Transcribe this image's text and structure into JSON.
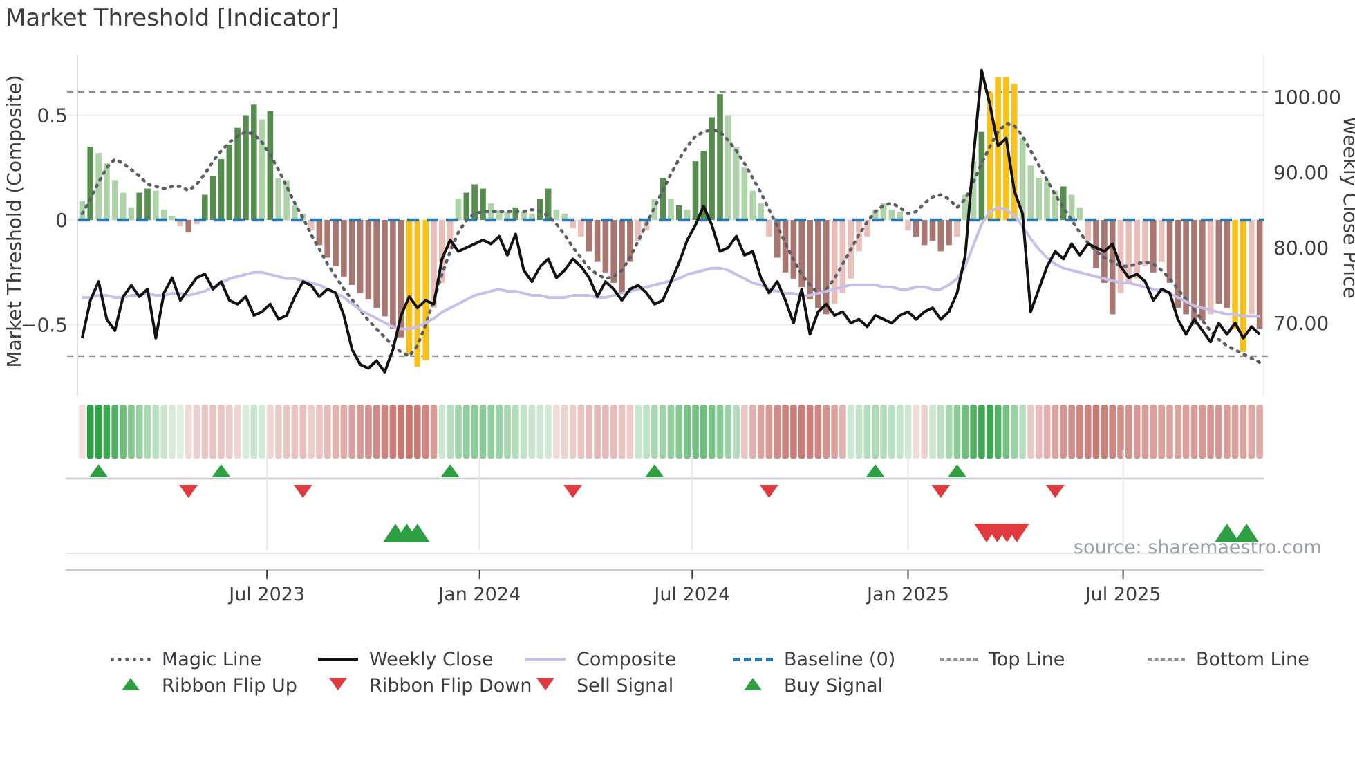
{
  "title": "Market Threshold [Indicator]",
  "source_text": "source: sharemaestro.com",
  "legend": {
    "magic": "Magic Line",
    "weekly": "Weekly Close",
    "composite": "Composite",
    "baseline": "Baseline (0)",
    "top": "Top Line",
    "bottom": "Bottom Line",
    "flip_up": "Ribbon Flip Up",
    "flip_down": "Ribbon Flip Down",
    "sell": "Sell Signal",
    "buy": "Buy Signal"
  },
  "chart_data": {
    "type": "bar",
    "title": "Market Threshold [Indicator]",
    "left_axis": {
      "label": "Market Threshold (Composite)",
      "ticks": [
        {
          "label": "0.5",
          "value": 0.5
        },
        {
          "label": "0",
          "value": 0
        },
        {
          "label": "−0.5",
          "value": -0.5
        }
      ]
    },
    "right_axis": {
      "label": "Weekly Close Price",
      "ticks": [
        {
          "label": "100.00",
          "value": 100
        },
        {
          "label": "90.00",
          "value": 90
        },
        {
          "label": "80.00",
          "value": 80
        },
        {
          "label": "70.00",
          "value": 70
        }
      ]
    },
    "x_ticks": [
      {
        "label": "Jul 2023",
        "week": 22.6
      },
      {
        "label": "Jan 2024",
        "week": 48.6
      },
      {
        "label": "Jul 2024",
        "week": 74.6
      },
      {
        "label": "Jan 2025",
        "week": 101.0
      },
      {
        "label": "Jul 2025",
        "week": 127.3
      }
    ],
    "top_line": 0.61,
    "bottom_line": -0.65,
    "baseline": 0,
    "colors": {
      "bar_light_green": "#aed3a8",
      "bar_dark_green": "#568c4e",
      "bar_light_red": "#eabfba",
      "bar_dark_red": "#a97670",
      "bar_extreme": "#f7c11a",
      "weekly_close": "#111111",
      "composite": "#c8bfe8",
      "magic_line": "#5b6066",
      "baseline": "#2878b0",
      "guide_lines": "#8b9097",
      "ribbon_green": "#2ca042",
      "ribbon_red": "#b2372d",
      "marker_green": "#2ea043",
      "marker_red": "#e0393e",
      "grid": "#e7ebf2",
      "spine": "#d0d5db"
    },
    "bars": {
      "values": [
        0.09,
        0.35,
        0.32,
        0.27,
        0.19,
        0.13,
        0.06,
        0.13,
        0.15,
        0.14,
        0.05,
        0.02,
        -0.03,
        -0.06,
        -0.02,
        0.12,
        0.21,
        0.29,
        0.36,
        0.44,
        0.5,
        0.55,
        0.48,
        0.52,
        0.2,
        0.19,
        0.07,
        0.03,
        -0.05,
        -0.12,
        -0.18,
        -0.22,
        -0.27,
        -0.31,
        -0.35,
        -0.38,
        -0.42,
        -0.46,
        -0.52,
        -0.56,
        -0.64,
        -0.7,
        -0.67,
        -0.42,
        -0.3,
        -0.14,
        0.1,
        0.13,
        0.17,
        0.15,
        0.08,
        0.05,
        0.04,
        0.06,
        0.04,
        0.03,
        0.1,
        0.15,
        0.05,
        0.03,
        -0.04,
        -0.08,
        -0.15,
        -0.2,
        -0.25,
        -0.3,
        -0.35,
        -0.2,
        -0.1,
        -0.05,
        0.1,
        0.2,
        0.1,
        0.07,
        0.05,
        0.28,
        0.33,
        0.49,
        0.6,
        0.5,
        0.35,
        0.25,
        0.14,
        0.08,
        -0.08,
        -0.18,
        -0.25,
        -0.28,
        -0.32,
        -0.38,
        -0.42,
        -0.45,
        -0.4,
        -0.35,
        -0.28,
        -0.15,
        -0.08,
        0.05,
        0.08,
        0.05,
        0.04,
        -0.05,
        -0.08,
        -0.12,
        -0.1,
        -0.15,
        -0.12,
        -0.08,
        0.12,
        0.28,
        0.42,
        0.61,
        0.68,
        0.68,
        0.65,
        0.39,
        0.26,
        0.2,
        0.19,
        0.14,
        0.16,
        0.12,
        0.06,
        -0.1,
        -0.23,
        -0.3,
        -0.45,
        -0.35,
        -0.3,
        -0.28,
        -0.22,
        -0.25,
        -0.2,
        -0.3,
        -0.42,
        -0.45,
        -0.5,
        -0.48,
        -0.45,
        -0.4,
        -0.42,
        -0.52,
        -0.63,
        -0.45,
        -0.52
      ],
      "colors": [
        "lg",
        "dg",
        "lg",
        "lg",
        "lg",
        "lg",
        "lg",
        "dg",
        "dg",
        "lg",
        "lg",
        "lg",
        "lr",
        "dr",
        "lr",
        "dg",
        "dg",
        "dg",
        "dg",
        "dg",
        "dg",
        "dg",
        "lg",
        "dg",
        "lg",
        "lg",
        "lg",
        "lg",
        "lr",
        "dr",
        "dr",
        "dr",
        "dr",
        "dr",
        "dr",
        "dr",
        "dr",
        "dr",
        "dr",
        "dr",
        "y",
        "y",
        "y",
        "lr",
        "lr",
        "lr",
        "lg",
        "dg",
        "dg",
        "dg",
        "lg",
        "lg",
        "lg",
        "dg",
        "lg",
        "lg",
        "dg",
        "dg",
        "lg",
        "lg",
        "lr",
        "lr",
        "dr",
        "dr",
        "dr",
        "dr",
        "dr",
        "dr",
        "lr",
        "lr",
        "lg",
        "dg",
        "lg",
        "dg",
        "lg",
        "dg",
        "dg",
        "dg",
        "dg",
        "lg",
        "lg",
        "lg",
        "lg",
        "lg",
        "lr",
        "dr",
        "dr",
        "dr",
        "dr",
        "dr",
        "dr",
        "dr",
        "lr",
        "lr",
        "lr",
        "lr",
        "lr",
        "lg",
        "lg",
        "lg",
        "lg",
        "lr",
        "dr",
        "dr",
        "dr",
        "dr",
        "dr",
        "lr",
        "lg",
        "lg",
        "dg",
        "y",
        "y",
        "y",
        "y",
        "lg",
        "lg",
        "lg",
        "lg",
        "lg",
        "dg",
        "lg",
        "lg",
        "lr",
        "dr",
        "dr",
        "dr",
        "lr",
        "lr",
        "lr",
        "lr",
        "dr",
        "lr",
        "dr",
        "dr",
        "dr",
        "dr",
        "dr",
        "lr",
        "dr",
        "dr",
        "y",
        "y",
        "lr",
        "dr"
      ]
    },
    "weekly_close": [
      68,
      73,
      75.5,
      70.5,
      69,
      73.5,
      75,
      73.5,
      74.5,
      68,
      74,
      76,
      73,
      74.5,
      76,
      76.5,
      74.5,
      75.5,
      73,
      72.5,
      73.5,
      71,
      71.5,
      72.5,
      70.5,
      71,
      73.5,
      75.5,
      75,
      73.5,
      74.5,
      74,
      71,
      66.5,
      64.5,
      64,
      65,
      63.5,
      66.5,
      71,
      73.5,
      72,
      73,
      72.5,
      78.5,
      81,
      79.5,
      80,
      80.5,
      81,
      80.5,
      81.5,
      79,
      81.8,
      77,
      75.5,
      77.5,
      78.5,
      76,
      77,
      78.5,
      77.5,
      76,
      73.5,
      75.5,
      74.5,
      73,
      74.5,
      75,
      74,
      72.5,
      73,
      75.5,
      78,
      81,
      83,
      85.5,
      83,
      79.5,
      80,
      81.5,
      79,
      79.5,
      76,
      74,
      75.5,
      73,
      70,
      74.5,
      68.5,
      71.5,
      72.5,
      71,
      71.5,
      70,
      70.5,
      69.5,
      71,
      70.5,
      70,
      71,
      71.5,
      70.5,
      71.5,
      72,
      70.5,
      71.5,
      74,
      79,
      92,
      103.5,
      99,
      93.5,
      94.5,
      87.5,
      84.5,
      71.5,
      74.5,
      77.5,
      79.5,
      78.5,
      80.5,
      79,
      80.5,
      80,
      79.5,
      80.5,
      77.5,
      76,
      76.5,
      75.5,
      73,
      74.5,
      74,
      70.5,
      68.5,
      70.5,
      69,
      67.5,
      70,
      68.5,
      70,
      68,
      69.5,
      68.5
    ],
    "composite": [
      -0.37,
      -0.37,
      -0.36,
      -0.36,
      -0.37,
      -0.37,
      -0.36,
      -0.36,
      -0.35,
      -0.36,
      -0.36,
      -0.35,
      -0.35,
      -0.36,
      -0.35,
      -0.34,
      -0.32,
      -0.3,
      -0.28,
      -0.27,
      -0.26,
      -0.25,
      -0.25,
      -0.26,
      -0.27,
      -0.28,
      -0.28,
      -0.29,
      -0.3,
      -0.31,
      -0.33,
      -0.35,
      -0.37,
      -0.4,
      -0.43,
      -0.45,
      -0.47,
      -0.49,
      -0.51,
      -0.52,
      -0.52,
      -0.51,
      -0.49,
      -0.47,
      -0.44,
      -0.42,
      -0.4,
      -0.38,
      -0.36,
      -0.35,
      -0.34,
      -0.33,
      -0.34,
      -0.34,
      -0.35,
      -0.36,
      -0.36,
      -0.37,
      -0.37,
      -0.37,
      -0.36,
      -0.36,
      -0.36,
      -0.37,
      -0.37,
      -0.36,
      -0.35,
      -0.34,
      -0.33,
      -0.32,
      -0.31,
      -0.3,
      -0.29,
      -0.28,
      -0.26,
      -0.25,
      -0.24,
      -0.23,
      -0.23,
      -0.24,
      -0.26,
      -0.28,
      -0.3,
      -0.31,
      -0.33,
      -0.34,
      -0.35,
      -0.35,
      -0.36,
      -0.36,
      -0.35,
      -0.34,
      -0.33,
      -0.32,
      -0.31,
      -0.31,
      -0.31,
      -0.31,
      -0.32,
      -0.32,
      -0.33,
      -0.33,
      -0.32,
      -0.32,
      -0.33,
      -0.33,
      -0.31,
      -0.28,
      -0.22,
      -0.12,
      -0.02,
      0.04,
      0.06,
      0.05,
      0.02,
      -0.03,
      -0.09,
      -0.14,
      -0.18,
      -0.21,
      -0.23,
      -0.24,
      -0.25,
      -0.26,
      -0.27,
      -0.28,
      -0.29,
      -0.3,
      -0.3,
      -0.31,
      -0.32,
      -0.33,
      -0.34,
      -0.35,
      -0.37,
      -0.39,
      -0.41,
      -0.42,
      -0.43,
      -0.44,
      -0.45,
      -0.45,
      -0.46,
      -0.46,
      -0.46
    ],
    "magic_line": [
      0.03,
      0.1,
      0.18,
      0.25,
      0.29,
      0.27,
      0.24,
      0.21,
      0.17,
      0.16,
      0.15,
      0.16,
      0.16,
      0.14,
      0.17,
      0.22,
      0.28,
      0.33,
      0.37,
      0.4,
      0.42,
      0.41,
      0.37,
      0.31,
      0.24,
      0.16,
      0.08,
      0.01,
      -0.07,
      -0.14,
      -0.21,
      -0.27,
      -0.33,
      -0.38,
      -0.43,
      -0.48,
      -0.52,
      -0.56,
      -0.6,
      -0.63,
      -0.65,
      -0.6,
      -0.5,
      -0.38,
      -0.26,
      -0.15,
      -0.06,
      0.0,
      0.03,
      0.04,
      0.04,
      0.04,
      0.04,
      0.04,
      0.04,
      0.05,
      0.04,
      0.02,
      -0.02,
      -0.07,
      -0.13,
      -0.18,
      -0.23,
      -0.26,
      -0.28,
      -0.27,
      -0.24,
      -0.18,
      -0.1,
      -0.02,
      0.06,
      0.14,
      0.22,
      0.29,
      0.35,
      0.4,
      0.42,
      0.43,
      0.42,
      0.38,
      0.33,
      0.27,
      0.2,
      0.13,
      0.05,
      -0.03,
      -0.11,
      -0.19,
      -0.26,
      -0.31,
      -0.35,
      -0.33,
      -0.28,
      -0.21,
      -0.14,
      -0.07,
      -0.01,
      0.04,
      0.07,
      0.08,
      0.06,
      0.03,
      0.04,
      0.08,
      0.11,
      0.12,
      0.1,
      0.06,
      0.1,
      0.18,
      0.27,
      0.35,
      0.42,
      0.46,
      0.45,
      0.4,
      0.33,
      0.26,
      0.19,
      0.12,
      0.06,
      0.0,
      -0.06,
      -0.11,
      -0.15,
      -0.18,
      -0.2,
      -0.22,
      -0.22,
      -0.21,
      -0.2,
      -0.21,
      -0.24,
      -0.28,
      -0.33,
      -0.38,
      -0.43,
      -0.48,
      -0.53,
      -0.57,
      -0.6,
      -0.62,
      -0.64,
      -0.66,
      -0.68
    ],
    "ribbon": [
      -0.15,
      1.0,
      1.0,
      0.92,
      0.82,
      0.7,
      0.58,
      0.48,
      0.4,
      0.33,
      0.26,
      0.2,
      0.15,
      -0.18,
      -0.24,
      -0.28,
      -0.3,
      -0.28,
      -0.25,
      -0.2,
      0.2,
      0.26,
      0.22,
      -0.2,
      -0.25,
      -0.28,
      -0.3,
      -0.32,
      -0.25,
      -0.3,
      -0.34,
      -0.38,
      -0.42,
      -0.46,
      -0.5,
      -0.54,
      -0.58,
      -0.62,
      -0.66,
      -0.68,
      -0.68,
      -0.66,
      -0.6,
      -0.5,
      0.25,
      0.35,
      0.45,
      0.52,
      0.55,
      0.55,
      0.52,
      0.48,
      0.42,
      0.36,
      0.3,
      0.26,
      0.24,
      0.22,
      -0.18,
      -0.22,
      -0.26,
      -0.3,
      -0.33,
      -0.35,
      -0.35,
      -0.33,
      -0.3,
      -0.25,
      0.25,
      0.32,
      0.4,
      0.46,
      0.52,
      0.58,
      0.63,
      0.66,
      0.68,
      0.64,
      0.56,
      0.46,
      0.36,
      -0.28,
      -0.38,
      -0.46,
      -0.52,
      -0.58,
      -0.62,
      -0.65,
      -0.66,
      -0.64,
      -0.6,
      -0.54,
      -0.46,
      -0.38,
      0.24,
      0.3,
      0.35,
      0.38,
      0.36,
      0.32,
      0.28,
      0.24,
      -0.18,
      -0.22,
      0.25,
      0.32,
      0.42,
      0.55,
      0.68,
      0.82,
      0.92,
      0.92,
      0.82,
      0.66,
      0.48,
      0.34,
      -0.26,
      -0.33,
      -0.4,
      -0.46,
      -0.52,
      -0.57,
      -0.61,
      -0.64,
      -0.66,
      -0.64,
      -0.61,
      -0.57,
      -0.54,
      -0.52,
      -0.5,
      -0.48,
      -0.47,
      -0.46,
      -0.47,
      -0.48,
      -0.5,
      -0.52,
      -0.53,
      -0.52,
      -0.5,
      -0.48,
      -0.46,
      -0.44,
      -0.42
    ],
    "markers": {
      "ribbon_flip_up_weeks": [
        2,
        17,
        45,
        70,
        97,
        107
      ],
      "ribbon_flip_down_weeks": [
        13,
        27,
        60,
        84,
        105,
        119
      ],
      "buy_signal_weeks": [
        38.3,
        39.7,
        41,
        140,
        142.4
      ],
      "sell_signal_weeks": [
        110.6,
        111.9,
        113.1,
        114.3
      ]
    }
  }
}
